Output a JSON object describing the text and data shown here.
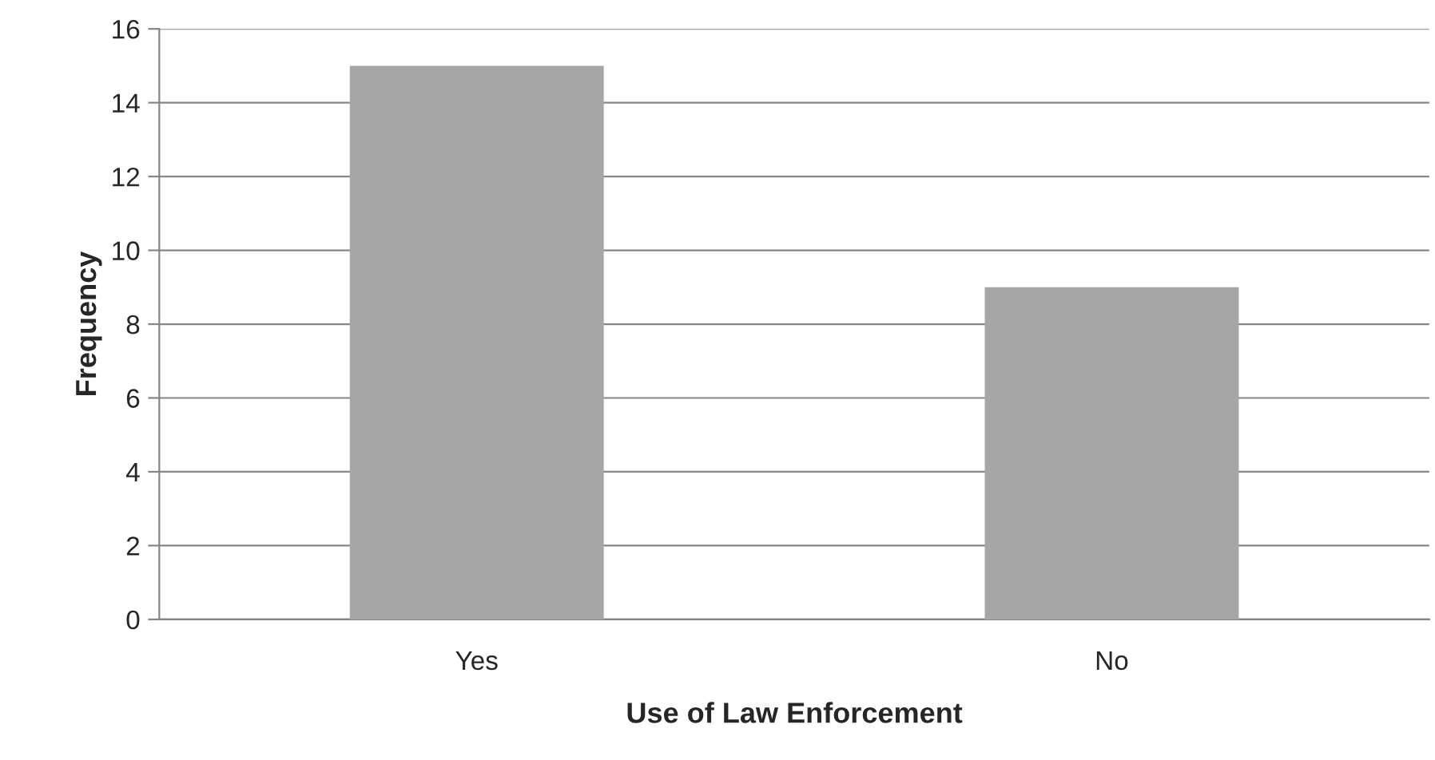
{
  "chart_data": {
    "type": "bar",
    "xlabel": "Use of Law Enforcement",
    "ylabel": "Frequency",
    "categories": [
      "Yes",
      "No"
    ],
    "series": [
      {
        "color": "#a6a6a6",
        "values": [
          15,
          9
        ]
      }
    ],
    "ylim": [
      0,
      16
    ],
    "yticks": [
      0,
      2,
      4,
      6,
      8,
      10,
      12,
      14,
      16
    ],
    "grid": "y"
  }
}
